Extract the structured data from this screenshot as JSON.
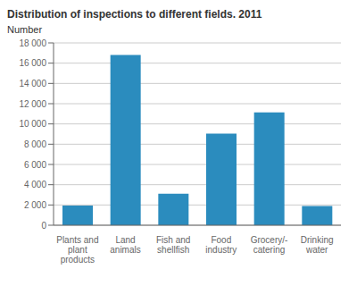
{
  "chart_data": {
    "type": "bar",
    "title": "Distribution of inspections to different fields. 2011",
    "ylabel": "Number",
    "categories": [
      "Plants and\nplant\nproducts",
      "Land\nanimals",
      "Fish and\nshellfish",
      "Food\nindustry",
      "Grocery/-\ncatering",
      "Drinking\nwater"
    ],
    "values": [
      1950,
      16800,
      3100,
      9050,
      11150,
      1900
    ],
    "color": "#2b8cbe",
    "ylim": [
      0,
      18000
    ],
    "yticks": [
      0,
      {
        "value": 2000,
        "label": "2 000"
      },
      {
        "value": 4000,
        "label": "4 000"
      },
      {
        "value": 6000,
        "label": "6 000"
      },
      {
        "value": 8000,
        "label": "8 000"
      },
      {
        "value": 10000,
        "label": "10 000"
      },
      {
        "value": 12000,
        "label": "12 000"
      },
      {
        "value": 14000,
        "label": "14 000"
      },
      {
        "value": 16000,
        "label": "16 000"
      },
      {
        "value": 18000,
        "label": "18 000"
      }
    ],
    "grid": true
  }
}
